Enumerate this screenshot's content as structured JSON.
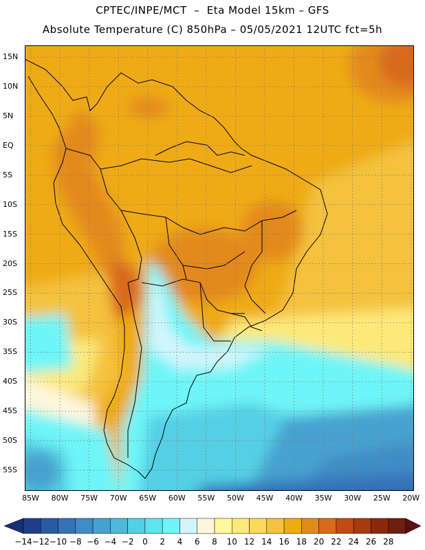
{
  "header": {
    "line1": "CPTEC/INPE/MCT  –  Eta Model 15km – GFS",
    "line2": "Absolute Temperature (C) 850hPa – 05/05/2021 12UTC fct=5h"
  },
  "map": {
    "lat_labels": [
      "15N",
      "10N",
      "5N",
      "EQ",
      "5S",
      "10S",
      "15S",
      "20S",
      "25S",
      "30S",
      "35S",
      "40S",
      "45S",
      "50S",
      "55S"
    ],
    "lon_labels": [
      "85W",
      "80W",
      "75W",
      "70W",
      "65W",
      "60W",
      "55W",
      "50W",
      "45W",
      "40W",
      "35W",
      "30W",
      "25W",
      "20W"
    ],
    "extent": {
      "lon_min": -86,
      "lon_max": -19.5,
      "lat_min": -58.5,
      "lat_max": 17
    },
    "gridlines": "dotted"
  },
  "colorbar": {
    "labels": [
      "-14",
      "-12",
      "-10",
      "-8",
      "-6",
      "-4",
      "-2",
      "0",
      "2",
      "4",
      "6",
      "8",
      "10",
      "12",
      "14",
      "16",
      "18",
      "20",
      "22",
      "24",
      "26",
      "28"
    ],
    "colors": [
      "#1f3f8c",
      "#2a5aa5",
      "#3573b8",
      "#3f8cc6",
      "#46a2cf",
      "#4eb9da",
      "#55cfe4",
      "#5fe3ef",
      "#6ef5f7",
      "#d2f5fb",
      "#fdf6dc",
      "#fff89a",
      "#fde97a",
      "#fcd95a",
      "#f4c23e",
      "#efab12",
      "#e38a1c",
      "#d9691b",
      "#c24a13",
      "#a83a0e",
      "#8a2a0d",
      "#6e1f10"
    ],
    "under_color": "#162f78",
    "over_color": "#5a0f14"
  }
}
